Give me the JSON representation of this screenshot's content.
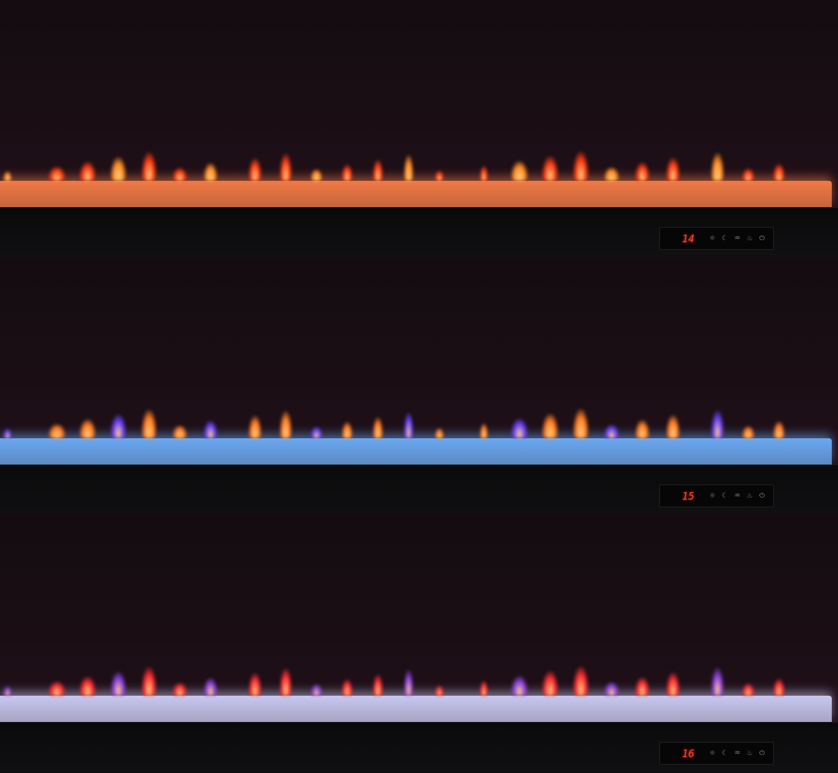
{
  "panels": [
    {
      "name": "orange",
      "temperature": "14",
      "bed_color": "#f07a45",
      "flame_colors": [
        "#ff3a10",
        "#ff8a20"
      ]
    },
    {
      "name": "blue",
      "temperature": "15",
      "bed_color": "#6aa8f0",
      "flame_colors": [
        "#ff7a20",
        "#6a40ff"
      ]
    },
    {
      "name": "white",
      "temperature": "16",
      "bed_color": "#c8c8f0",
      "flame_colors": [
        "#ff2a30",
        "#8a40e0"
      ]
    }
  ],
  "control_icons": [
    "brightness-icon",
    "timer-moon-icon",
    "flame-effect-icon",
    "heat-icon",
    "power-icon"
  ]
}
